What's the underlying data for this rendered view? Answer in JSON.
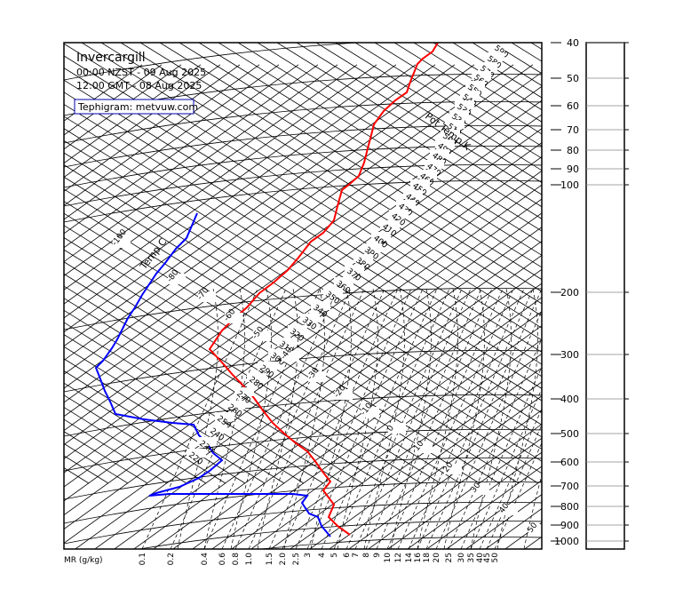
{
  "header": {
    "station": "Invercargill",
    "local_time": "00:00 NZST - 09 Aug 2025",
    "utc_time": "12:00 GMT - 08 Aug 2025",
    "credit": "Tephigram: metvuw.com"
  },
  "labels": {
    "temp_axis": "Temp C",
    "pot_temp_axis": "Pot Temp K",
    "mixing_ratio": "MR (g/kg)"
  },
  "chart_data": {
    "type": "line",
    "title": "Invercargill",
    "pressure_levels_hpa": [
      40,
      50,
      60,
      70,
      80,
      90,
      100,
      200,
      300,
      400,
      500,
      600,
      700,
      800,
      900,
      1000
    ],
    "mixing_ratio_labels": [
      "0.1",
      "0.2",
      "0.4",
      "0.6",
      "0.8",
      "1.0",
      "1.5",
      "2.0",
      "2.5",
      "3",
      "4",
      "5",
      "6",
      "7",
      "8",
      "9",
      "10",
      "12",
      "14",
      "16",
      "18",
      "20",
      "25",
      "30",
      "35",
      "40",
      "45",
      "50"
    ],
    "temperature_labels_c": [
      "-100",
      "-80",
      "-70",
      "-60",
      "-50",
      "-40",
      "-30",
      "-20",
      "-10",
      "0",
      "10",
      "20",
      "30",
      "40",
      "50"
    ],
    "potential_temp_labels_k": [
      "590",
      "580",
      "570",
      "560",
      "550",
      "540",
      "530",
      "520",
      "510",
      "500",
      "490",
      "480",
      "470",
      "460",
      "450",
      "440",
      "430",
      "420",
      "410",
      "400",
      "390",
      "380",
      "370",
      "360",
      "350",
      "340",
      "330",
      "320",
      "310",
      "300",
      "290",
      "280",
      "270",
      "260",
      "250",
      "240",
      "230",
      "220"
    ],
    "series": [
      {
        "color": "#ff0000"
      },
      {
        "color": "#0000ff"
      }
    ]
  }
}
